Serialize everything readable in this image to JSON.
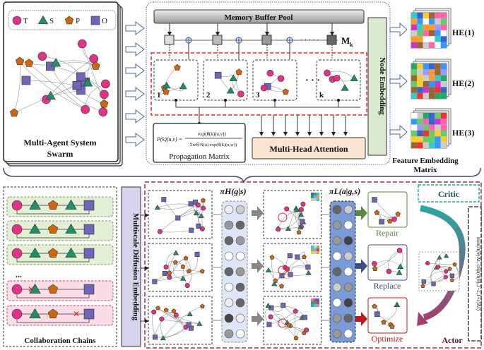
{
  "legend": [
    {
      "label": "T",
      "shape": "circle",
      "color": "#e0338a"
    },
    {
      "label": "S",
      "shape": "triangle",
      "color": "#1f8f6a"
    },
    {
      "label": "P",
      "shape": "pentagon",
      "color": "#d2660f"
    },
    {
      "label": "O",
      "shape": "square",
      "color": "#6e66b5"
    }
  ],
  "swarm": {
    "title_line1": "Multi-Agent System",
    "title_line2": "Swarm"
  },
  "memory": {
    "title": "Memory Buffer Pool",
    "mk_label": "M",
    "mk_sub": "k"
  },
  "steps": [
    "1",
    "2",
    "3",
    "k"
  ],
  "steps_ellipsis": "· · ·",
  "propagation": {
    "formula_lhs": "P(k)(u,v) =",
    "numerator": "exp(θ(k)(u,v))",
    "denominator": "Σw∈N(u) exp(θ(k)(u,w))",
    "title": "Propagation Matrix"
  },
  "attention": {
    "title": "Multi-Head Attention"
  },
  "node_embedding": {
    "title": "Node Embedding"
  },
  "feature": {
    "labels": [
      "HE(1)",
      "HE(2)",
      "HE(3)"
    ],
    "title_line1": "Feature Embedding",
    "title_line2": "Matrix"
  },
  "chains": {
    "title": "Collaboration Chains",
    "ellipsis": "..."
  },
  "diffusion": {
    "title": "Multiscale Diffusion Embedding"
  },
  "policy": {
    "high": "πH(g|s)",
    "low": "πL(a|g,s)"
  },
  "actions": [
    {
      "label": "Repair",
      "color": "#5a8a3a"
    },
    {
      "label": "Replace",
      "color": "#3a4f85"
    },
    {
      "label": "Optimize",
      "color": "#c01818"
    }
  ],
  "critic": {
    "title": "Critic"
  },
  "actor": {
    "title": "Actor",
    "objective": "min(rt(θ)Ât, clip(rt(θ),1−ε,1+ε)Ât)"
  },
  "colors": {
    "accent_red": "#e8262b",
    "maroon": "#9a2a55",
    "teal": "#2aa7a0"
  }
}
